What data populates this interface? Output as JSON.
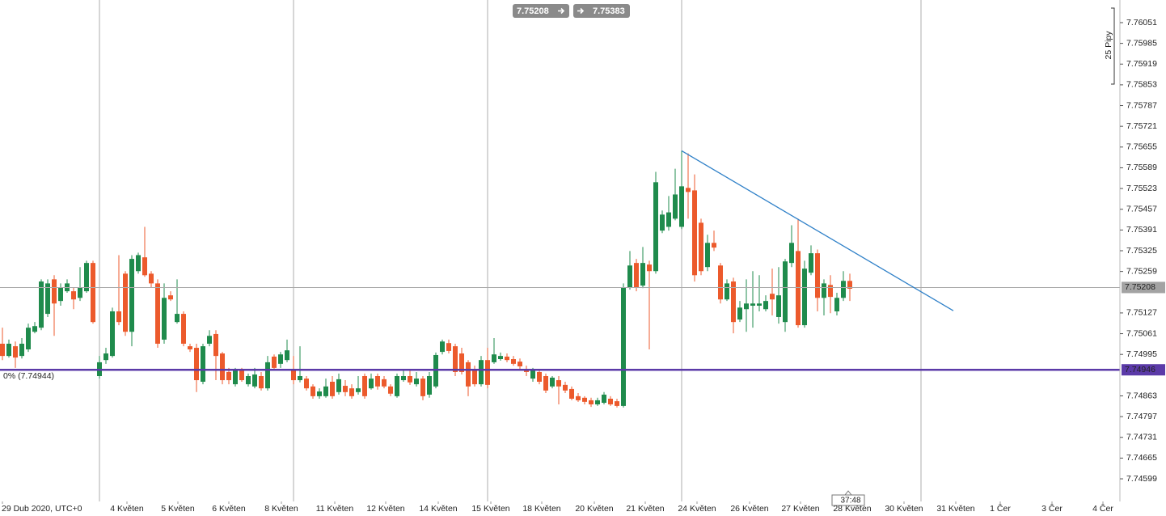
{
  "chart_data": {
    "type": "candlestick",
    "up_color": "#1f8b4c",
    "down_color": "#ec5a2c",
    "open": [
      7.75029,
      7.7499,
      7.75021,
      7.7499,
      7.75011,
      7.75067,
      7.7508,
      7.75124,
      7.75234,
      7.75165,
      7.75196,
      7.75196,
      7.75175,
      7.75196,
      7.75286,
      7.74926,
      7.74977,
      7.7499,
      7.75132,
      7.75252,
      7.75067,
      7.7526,
      7.75304,
      7.75252,
      7.75221,
      7.75042,
      7.75183,
      7.75098,
      7.75124,
      7.75021,
      7.75016,
      7.74908,
      7.75029,
      7.7506,
      7.74998,
      7.74939,
      7.749,
      7.74944,
      7.749,
      7.74893,
      7.74926,
      7.74887,
      7.74988,
      7.74965,
      7.74977,
      7.74944,
      7.74913,
      7.74918,
      7.74893,
      7.74862,
      7.74862,
      7.74908,
      7.74875,
      7.74895,
      7.74887,
      7.74875,
      7.74926,
      7.74887,
      7.74926,
      7.74916,
      7.74893,
      7.74862,
      7.74913,
      7.74926,
      7.749,
      7.74918,
      7.74867,
      7.74893,
      7.75003,
      7.75031,
      7.75021,
      7.74998,
      7.7497,
      7.74944,
      7.749,
      7.74977,
      7.7497,
      7.7498,
      7.74988,
      7.7498,
      7.74972,
      7.74949,
      7.74918,
      7.74939,
      7.74926,
      7.74893,
      7.74913,
      7.74898,
      7.74885,
      7.74862,
      7.74857,
      7.74849,
      7.74836,
      7.74841,
      7.74854,
      7.74846,
      7.74831,
      7.75209,
      7.75286,
      7.75214,
      7.75281,
      7.7526,
      7.75389,
      7.75401,
      7.75427,
      7.75401,
      7.75525,
      7.75517,
      7.75414,
      7.75273,
      7.7535,
      7.75278,
      7.7517,
      7.75227,
      7.75106,
      7.75139,
      7.7515,
      7.7515,
      7.75139,
      7.75188,
      7.75114,
      7.75098,
      7.75286,
      7.75324,
      7.75088,
      7.75255,
      7.75317,
      7.75175,
      7.75216,
      7.75132,
      7.75175,
      7.75229
    ],
    "high": [
      7.7508,
      7.75042,
      7.75036,
      7.75047,
      7.75093,
      7.75098,
      7.75234,
      7.75234,
      7.75247,
      7.75221,
      7.75234,
      7.75209,
      7.75273,
      7.75293,
      7.75293,
      7.7499,
      7.75016,
      7.75144,
      7.75311,
      7.7526,
      7.75311,
      7.75319,
      7.75401,
      7.7526,
      7.75234,
      7.75221,
      7.75196,
      7.75234,
      7.75132,
      7.75029,
      7.75029,
      7.75029,
      7.75072,
      7.75072,
      7.75003,
      7.74952,
      7.74952,
      7.74952,
      7.74934,
      7.74952,
      7.74939,
      7.7499,
      7.74995,
      7.75003,
      7.75042,
      7.7499,
      7.75021,
      7.74926,
      7.749,
      7.74887,
      7.74918,
      7.74926,
      7.74934,
      7.74913,
      7.749,
      7.74926,
      7.74934,
      7.74934,
      7.74934,
      7.74926,
      7.749,
      7.74934,
      7.74944,
      7.74944,
      7.74939,
      7.74926,
      7.74939,
      7.75001,
      7.75042,
      7.75042,
      7.75029,
      7.75016,
      7.74977,
      7.74959,
      7.7499,
      7.75016,
      7.75047,
      7.75001,
      7.74998,
      7.7499,
      7.74982,
      7.74959,
      7.74952,
      7.74944,
      7.74934,
      7.74926,
      7.74926,
      7.74908,
      7.74893,
      7.74872,
      7.74862,
      7.74857,
      7.74857,
      7.74875,
      7.74862,
      7.74854,
      7.75221,
      7.75324,
      7.75299,
      7.75337,
      7.75293,
      7.75576,
      7.75453,
      7.75499,
      7.75586,
      7.75643,
      7.75635,
      7.75568,
      7.75427,
      7.75376,
      7.75389,
      7.75286,
      7.75234,
      7.75239,
      7.75165,
      7.75234,
      7.7526,
      7.75247,
      7.75183,
      7.75268,
      7.75273,
      7.75299,
      7.75406,
      7.75427,
      7.75293,
      7.75342,
      7.75329,
      7.75234,
      7.75247,
      7.75191,
      7.7526,
      7.75252
    ],
    "low": [
      7.74977,
      7.74985,
      7.74952,
      7.74982,
      7.75003,
      7.75062,
      7.75072,
      7.75114,
      7.75054,
      7.7515,
      7.75191,
      7.75139,
      7.75165,
      7.75191,
      7.75093,
      7.74918,
      7.74965,
      7.74985,
      7.75088,
      7.75054,
      7.75021,
      7.75252,
      7.75242,
      7.75209,
      7.75016,
      7.75029,
      7.75165,
      7.75093,
      7.75021,
      7.75003,
      7.74875,
      7.749,
      7.75021,
      7.74913,
      7.749,
      7.749,
      7.74893,
      7.74908,
      7.74893,
      7.74887,
      7.7488,
      7.7488,
      7.74944,
      7.74952,
      7.7497,
      7.749,
      7.74906,
      7.7488,
      7.74854,
      7.74854,
      7.74857,
      7.74854,
      7.74867,
      7.74862,
      7.74854,
      7.74867,
      7.74854,
      7.74883,
      7.74883,
      7.74887,
      7.74862,
      7.74857,
      7.74908,
      7.74898,
      7.74893,
      7.74849,
      7.74857,
      7.74887,
      7.74995,
      7.74998,
      7.74926,
      7.74931,
      7.74862,
      7.74893,
      7.74893,
      7.74887,
      7.74965,
      7.74975,
      7.7497,
      7.74959,
      7.74949,
      7.74926,
      7.74908,
      7.749,
      7.74872,
      7.74887,
      7.74836,
      7.74872,
      7.74849,
      7.74844,
      7.74836,
      7.74828,
      7.74831,
      7.74836,
      7.74831,
      7.74826,
      7.74826,
      7.75201,
      7.75196,
      7.75206,
      7.75011,
      7.75252,
      7.75381,
      7.75389,
      7.75422,
      7.75394,
      7.75427,
      7.75227,
      7.75247,
      7.7526,
      7.75324,
      7.75157,
      7.75165,
      7.75062,
      7.75098,
      7.75067,
      7.7508,
      7.75132,
      7.75132,
      7.75119,
      7.75093,
      7.75067,
      7.75273,
      7.7508,
      7.7508,
      7.75247,
      7.75132,
      7.75119,
      7.75126,
      7.75119,
      7.75165,
      7.75165
    ],
    "close": [
      7.7499,
      7.75029,
      7.74985,
      7.75029,
      7.7508,
      7.75085,
      7.75227,
      7.75221,
      7.75157,
      7.75209,
      7.75221,
      7.7517,
      7.75209,
      7.75286,
      7.75098,
      7.7497,
      7.74998,
      7.75132,
      7.75098,
      7.75067,
      7.75299,
      7.75311,
      7.75247,
      7.75221,
      7.75029,
      7.75175,
      7.7517,
      7.75124,
      7.75029,
      7.75011,
      7.74913,
      7.75021,
      7.75054,
      7.7499,
      7.74913,
      7.74913,
      7.74947,
      7.74913,
      7.74926,
      7.74931,
      7.74887,
      7.7497,
      7.74952,
      7.74995,
      7.75008,
      7.74913,
      7.74926,
      7.74887,
      7.74862,
      7.74877,
      7.74893,
      7.74862,
      7.74916,
      7.74875,
      7.74862,
      7.74887,
      7.74862,
      7.74918,
      7.74893,
      7.74893,
      7.7487,
      7.74926,
      7.74926,
      7.74906,
      7.74918,
      7.74862,
      7.74926,
      7.74993,
      7.75036,
      7.75006,
      7.74939,
      7.74939,
      7.74893,
      7.749,
      7.74977,
      7.74898,
      7.74995,
      7.7499,
      7.74977,
      7.74965,
      7.74957,
      7.74939,
      7.74944,
      7.74908,
      7.7488,
      7.74921,
      7.74893,
      7.7488,
      7.74854,
      7.74849,
      7.74844,
      7.74836,
      7.74849,
      7.74867,
      7.74836,
      7.74831,
      7.75209,
      7.75278,
      7.75209,
      7.75286,
      7.7526,
      7.75543,
      7.7544,
      7.75447,
      7.75504,
      7.7553,
      7.75512,
      7.75247,
      7.7526,
      7.7535,
      7.75335,
      7.7517,
      7.75221,
      7.75098,
      7.75144,
      7.75157,
      7.75157,
      7.75157,
      7.75165,
      7.7517,
      7.75183,
      7.75291,
      7.7535,
      7.75088,
      7.75268,
      7.75317,
      7.75175,
      7.75221,
      7.75178,
      7.75175,
      7.75229,
      7.75204
    ],
    "ylim": [
      7.74527,
      7.76123
    ],
    "yticks": [
      7.76051,
      7.75985,
      7.75919,
      7.75853,
      7.75787,
      7.75721,
      7.75655,
      7.75589,
      7.75523,
      7.75457,
      7.75391,
      7.75325,
      7.75259,
      7.75127,
      7.75061,
      7.74995,
      7.74863,
      7.74797,
      7.74731,
      7.74665,
      7.74599
    ],
    "xlim": [
      -0.375,
      172.75
    ],
    "xticks": [
      {
        "value": 0,
        "label": "29 Dub 2020, UTC+0"
      },
      {
        "value": 19.25,
        "label": "4 Květen"
      },
      {
        "value": 27.125,
        "label": "5 Květen"
      },
      {
        "value": 35,
        "label": "6 Květen"
      },
      {
        "value": 43.125,
        "label": "8 Květen"
      },
      {
        "value": 51.375,
        "label": "11 Květen"
      },
      {
        "value": 59.25,
        "label": "12 Květen"
      },
      {
        "value": 67.375,
        "label": "14 Květen"
      },
      {
        "value": 75.5,
        "label": "15 Květen"
      },
      {
        "value": 83.375,
        "label": "18 Květen"
      },
      {
        "value": 91.5,
        "label": "20 Květen"
      },
      {
        "value": 99.375,
        "label": "21 Květen"
      },
      {
        "value": 107.375,
        "label": "24 Květen"
      },
      {
        "value": 115.5,
        "label": "26 Květen"
      },
      {
        "value": 123.375,
        "label": "27 Květen"
      },
      {
        "value": 131.375,
        "label": "28 Květen"
      },
      {
        "value": 139.375,
        "label": "30 Květen"
      },
      {
        "value": 147.375,
        "label": "31 Květen"
      },
      {
        "value": 154.25,
        "label": "1 Čer"
      },
      {
        "value": 162.25,
        "label": "3 Čer"
      },
      {
        "value": 170.125,
        "label": "4 Čer"
      }
    ],
    "xgrid": [
      15,
      45,
      75,
      105,
      142
    ],
    "trendline": {
      "x": [
        105,
        147
      ],
      "y": [
        7.75643,
        7.75134
      ],
      "color": "#2f80c8"
    },
    "current_price": 7.75208,
    "level": {
      "value": 7.74946,
      "label": "0% (7.74944)",
      "color": "#5b3aa8"
    },
    "measure": {
      "from": 7.75208,
      "to": 7.75383
    },
    "pips_label": "25 Pipy",
    "countdown": "37:48"
  }
}
